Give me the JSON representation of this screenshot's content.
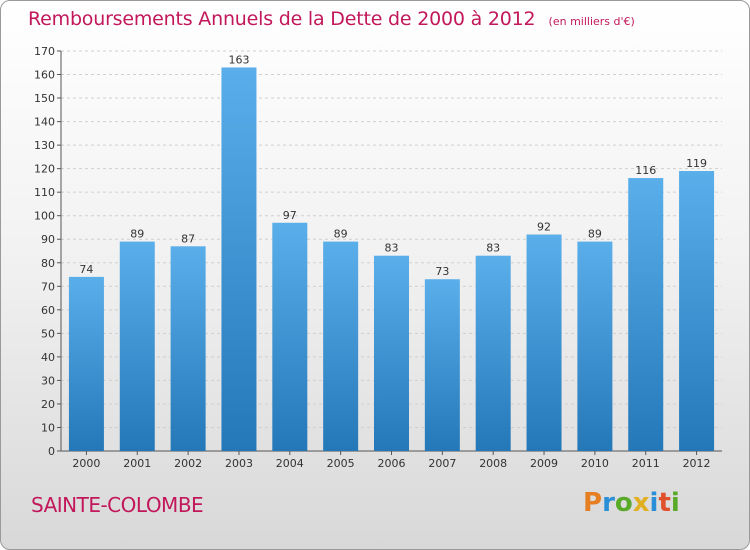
{
  "title": "Remboursements Annuels de la Dette de 2000 à 2012",
  "subtitle": "(en milliers d'€)",
  "place": "SAINTE-COLOMBE",
  "logo": {
    "letters": [
      "P",
      "r",
      "o",
      "x",
      "i",
      "t",
      "i"
    ],
    "colors": [
      "#e67e22",
      "#2a8fd6",
      "#5aaa2a",
      "#e0b020",
      "#2a8fd6",
      "#e0502a",
      "#5aaa2a"
    ]
  },
  "colors": {
    "accent": "#c2185b",
    "bar_top": "#5aaeea",
    "bar_bottom": "#2478b8"
  },
  "chart_data": {
    "type": "bar",
    "categories": [
      "2000",
      "2001",
      "2002",
      "2003",
      "2004",
      "2005",
      "2006",
      "2007",
      "2008",
      "2009",
      "2010",
      "2011",
      "2012"
    ],
    "values": [
      74,
      89,
      87,
      163,
      97,
      89,
      83,
      73,
      83,
      92,
      89,
      116,
      119
    ],
    "ylim": [
      0,
      170
    ],
    "yticks": [
      0,
      10,
      20,
      30,
      40,
      50,
      60,
      70,
      80,
      90,
      100,
      110,
      120,
      130,
      140,
      150,
      160,
      170
    ],
    "grid": true,
    "xlabel": "",
    "ylabel": ""
  }
}
